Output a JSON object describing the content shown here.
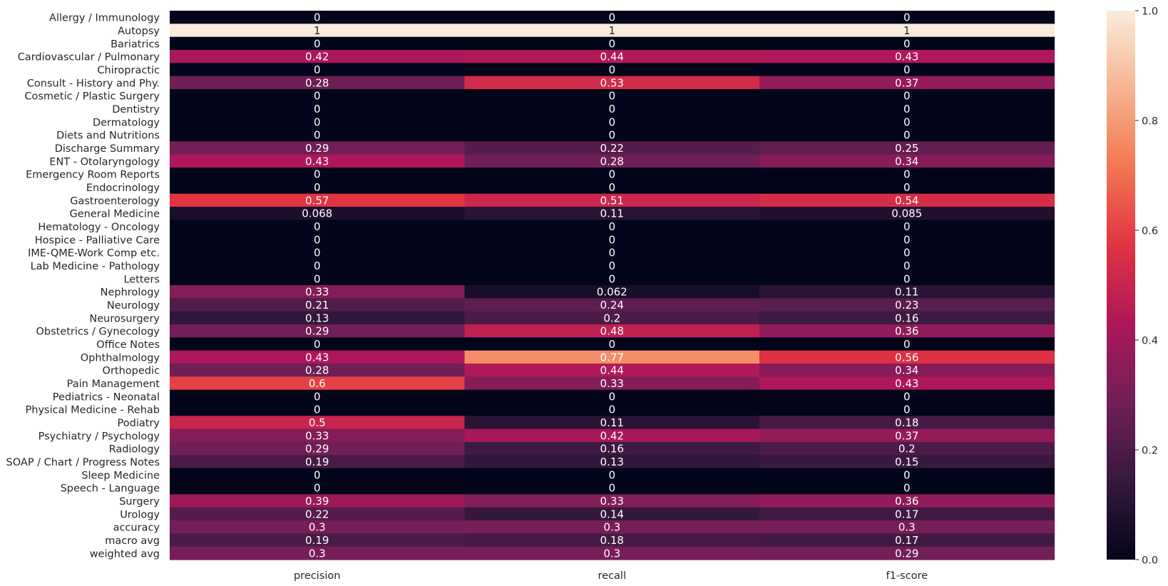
{
  "chart_data": {
    "type": "heatmap",
    "rows": [
      "Allergy / Immunology",
      "Autopsy",
      "Bariatrics",
      "Cardiovascular / Pulmonary",
      "Chiropractic",
      "Consult - History and Phy.",
      "Cosmetic / Plastic Surgery",
      "Dentistry",
      "Dermatology",
      "Diets and Nutritions",
      "Discharge Summary",
      "ENT - Otolaryngology",
      "Emergency Room Reports",
      "Endocrinology",
      "Gastroenterology",
      "General Medicine",
      "Hematology - Oncology",
      "Hospice - Palliative Care",
      "IME-QME-Work Comp etc.",
      "Lab Medicine - Pathology",
      "Letters",
      "Nephrology",
      "Neurology",
      "Neurosurgery",
      "Obstetrics / Gynecology",
      "Office Notes",
      "Ophthalmology",
      "Orthopedic",
      "Pain Management",
      "Pediatrics - Neonatal",
      "Physical Medicine - Rehab",
      "Podiatry",
      "Psychiatry / Psychology",
      "Radiology",
      "SOAP / Chart / Progress Notes",
      "Sleep Medicine",
      "Speech - Language",
      "Surgery",
      "Urology",
      "accuracy",
      "macro avg",
      "weighted avg"
    ],
    "columns": [
      "precision",
      "recall",
      "f1-score"
    ],
    "values": [
      [
        "0",
        "0",
        "0"
      ],
      [
        "1",
        "1",
        "1"
      ],
      [
        "0",
        "0",
        "0"
      ],
      [
        "0.42",
        "0.44",
        "0.43"
      ],
      [
        "0",
        "0",
        "0"
      ],
      [
        "0.28",
        "0.53",
        "0.37"
      ],
      [
        "0",
        "0",
        "0"
      ],
      [
        "0",
        "0",
        "0"
      ],
      [
        "0",
        "0",
        "0"
      ],
      [
        "0",
        "0",
        "0"
      ],
      [
        "0.29",
        "0.22",
        "0.25"
      ],
      [
        "0.43",
        "0.28",
        "0.34"
      ],
      [
        "0",
        "0",
        "0"
      ],
      [
        "0",
        "0",
        "0"
      ],
      [
        "0.57",
        "0.51",
        "0.54"
      ],
      [
        "0.068",
        "0.11",
        "0.085"
      ],
      [
        "0",
        "0",
        "0"
      ],
      [
        "0",
        "0",
        "0"
      ],
      [
        "0",
        "0",
        "0"
      ],
      [
        "0",
        "0",
        "0"
      ],
      [
        "0",
        "0",
        "0"
      ],
      [
        "0.33",
        "0.062",
        "0.11"
      ],
      [
        "0.21",
        "0.24",
        "0.23"
      ],
      [
        "0.13",
        "0.2",
        "0.16"
      ],
      [
        "0.29",
        "0.48",
        "0.36"
      ],
      [
        "0",
        "0",
        "0"
      ],
      [
        "0.43",
        "0.77",
        "0.56"
      ],
      [
        "0.28",
        "0.44",
        "0.34"
      ],
      [
        "0.6",
        "0.33",
        "0.43"
      ],
      [
        "0",
        "0",
        "0"
      ],
      [
        "0",
        "0",
        "0"
      ],
      [
        "0.5",
        "0.11",
        "0.18"
      ],
      [
        "0.33",
        "0.42",
        "0.37"
      ],
      [
        "0.29",
        "0.16",
        "0.2"
      ],
      [
        "0.19",
        "0.13",
        "0.15"
      ],
      [
        "0",
        "0",
        "0"
      ],
      [
        "0",
        "0",
        "0"
      ],
      [
        "0.39",
        "0.33",
        "0.36"
      ],
      [
        "0.22",
        "0.14",
        "0.17"
      ],
      [
        "0.3",
        "0.3",
        "0.3"
      ],
      [
        "0.19",
        "0.18",
        "0.17"
      ],
      [
        "0.3",
        "0.3",
        "0.29"
      ]
    ],
    "colorbar": {
      "min": 0,
      "max": 1,
      "ticks": [
        "0.0",
        "0.2",
        "0.4",
        "0.6",
        "0.8",
        "1.0"
      ]
    },
    "colormap": [
      "#03051a",
      "#36193e",
      "#701f57",
      "#ad1759",
      "#e13342",
      "#f37651",
      "#f6b48f",
      "#faebdd"
    ]
  }
}
